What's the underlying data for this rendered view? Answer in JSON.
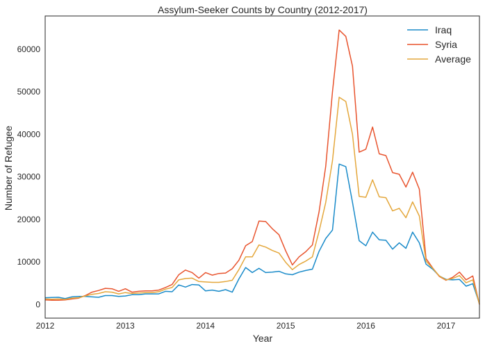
{
  "chart_data": {
    "type": "line",
    "title": "Assylum-Seeker Counts by Country (2012-2017)",
    "xlabel": "Year",
    "ylabel": "Number of Refugee",
    "x_ticks": [
      "2012",
      "2013",
      "2014",
      "2015",
      "2016",
      "2017"
    ],
    "y_ticks": [
      0,
      10000,
      20000,
      30000,
      40000,
      50000,
      60000
    ],
    "ylim": [
      -3200,
      67800
    ],
    "xlim": [
      "2012-01",
      "2017-06"
    ],
    "grid": false,
    "legend_position": "top-right",
    "x": [
      "2012-01",
      "2012-02",
      "2012-03",
      "2012-04",
      "2012-05",
      "2012-06",
      "2012-07",
      "2012-08",
      "2012-09",
      "2012-10",
      "2012-11",
      "2012-12",
      "2013-01",
      "2013-02",
      "2013-03",
      "2013-04",
      "2013-05",
      "2013-06",
      "2013-07",
      "2013-08",
      "2013-09",
      "2013-10",
      "2013-11",
      "2013-12",
      "2014-01",
      "2014-02",
      "2014-03",
      "2014-04",
      "2014-05",
      "2014-06",
      "2014-07",
      "2014-08",
      "2014-09",
      "2014-10",
      "2014-11",
      "2014-12",
      "2015-01",
      "2015-02",
      "2015-03",
      "2015-04",
      "2015-05",
      "2015-06",
      "2015-07",
      "2015-08",
      "2015-09",
      "2015-10",
      "2015-11",
      "2015-12",
      "2016-01",
      "2016-02",
      "2016-03",
      "2016-04",
      "2016-05",
      "2016-06",
      "2016-07",
      "2016-08",
      "2016-09",
      "2016-10",
      "2016-11",
      "2016-12",
      "2017-01",
      "2017-02",
      "2017-03",
      "2017-04",
      "2017-05",
      "2017-06"
    ],
    "series": [
      {
        "name": "Iraq",
        "color": "#188ac9",
        "values": [
          1600,
          1650,
          1700,
          1400,
          1800,
          1900,
          1900,
          1800,
          1700,
          2100,
          2100,
          1900,
          2000,
          2300,
          2300,
          2500,
          2500,
          2500,
          3100,
          3000,
          4600,
          4100,
          4700,
          4600,
          3200,
          3400,
          3100,
          3500,
          2900,
          6000,
          8700,
          7500,
          8500,
          7500,
          7600,
          7800,
          7200,
          7000,
          7600,
          8000,
          8300,
          12500,
          15500,
          17500,
          33000,
          32400,
          24000,
          15000,
          13800,
          17000,
          15200,
          15100,
          13000,
          14500,
          13200,
          17000,
          14500,
          9500,
          8300,
          6700,
          5900,
          5800,
          5900,
          4300,
          4900,
          200
        ]
      },
      {
        "name": "Syria",
        "color": "#e8532d",
        "values": [
          1100,
          1000,
          1000,
          1100,
          1300,
          1500,
          2100,
          2900,
          3300,
          3800,
          3700,
          3100,
          3700,
          2900,
          3100,
          3200,
          3200,
          3400,
          4000,
          4700,
          7000,
          8100,
          7500,
          6200,
          7500,
          6900,
          7300,
          7400,
          8400,
          10400,
          13800,
          14800,
          19600,
          19500,
          17800,
          16400,
          12600,
          9300,
          11200,
          12400,
          14000,
          21800,
          32500,
          50000,
          64500,
          63000,
          56000,
          35800,
          36500,
          41700,
          35400,
          35000,
          31000,
          30600,
          27600,
          31100,
          27100,
          10800,
          8600,
          6600,
          5700,
          6400,
          7600,
          5800,
          6700,
          0
        ]
      },
      {
        "name": "Average",
        "color": "#e4a73b",
        "values": [
          1300,
          1250,
          1300,
          1200,
          1500,
          1600,
          2000,
          2400,
          2600,
          3000,
          2900,
          2500,
          2800,
          2600,
          2700,
          2800,
          2800,
          3000,
          3600,
          4000,
          5800,
          6100,
          6200,
          5400,
          5300,
          5200,
          5200,
          5400,
          5700,
          8200,
          11200,
          11200,
          14000,
          13500,
          12700,
          12100,
          9900,
          8200,
          9400,
          10200,
          11200,
          17200,
          24000,
          33800,
          48700,
          47700,
          40000,
          25400,
          25200,
          29300,
          25300,
          25100,
          22000,
          22600,
          20400,
          24100,
          20800,
          10200,
          8500,
          6700,
          5800,
          6100,
          6800,
          5100,
          5800,
          100
        ]
      }
    ]
  }
}
